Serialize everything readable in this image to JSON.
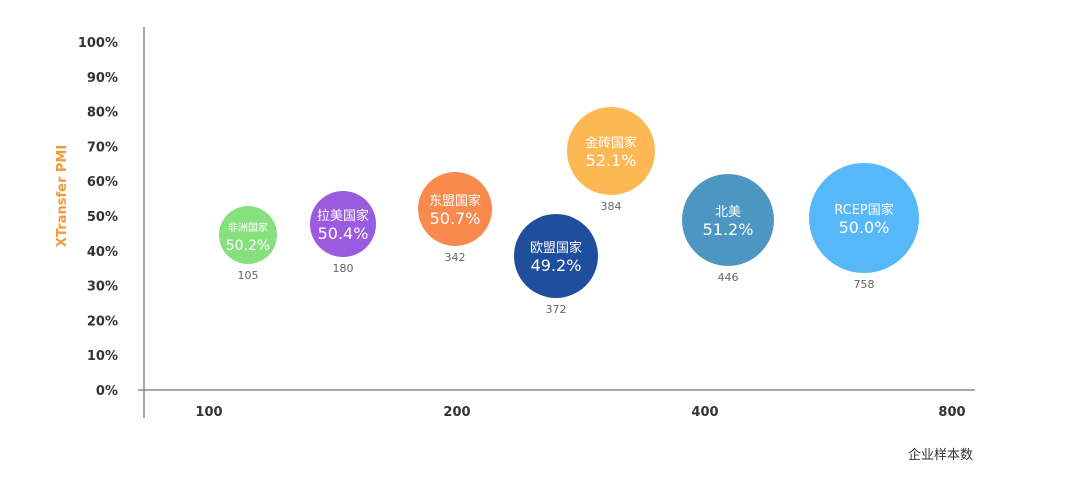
{
  "chart_data": {
    "type": "scatter",
    "title": "",
    "xlabel": "企业样本数",
    "ylabel": "XTransfer PMI",
    "y_ticks": [
      "0%",
      "10%",
      "20%",
      "30%",
      "40%",
      "50%",
      "60%",
      "70%",
      "80%",
      "90%",
      "100%"
    ],
    "ylim": [
      0,
      100
    ],
    "x_ticks": [
      "100",
      "200",
      "400",
      "800"
    ],
    "x_scale": "log",
    "series": [
      {
        "name": "非洲国家",
        "pmi_label": "50.2%",
        "pmi": 50.2,
        "y": 45,
        "sample": 105,
        "sample_label": "105",
        "color": "#86E07E"
      },
      {
        "name": "拉美国家",
        "pmi_label": "50.4%",
        "pmi": 50.4,
        "y": 48,
        "sample": 180,
        "sample_label": "180",
        "color": "#9B5BE0"
      },
      {
        "name": "东盟国家",
        "pmi_label": "50.7%",
        "pmi": 50.7,
        "y": 52,
        "sample": 342,
        "sample_label": "342",
        "color": "#F98A4E"
      },
      {
        "name": "欧盟国家",
        "pmi_label": "49.2%",
        "pmi": 49.2,
        "y": 39,
        "sample": 372,
        "sample_label": "372",
        "color": "#1F4E9C"
      },
      {
        "name": "金砖国家",
        "pmi_label": "52.1%",
        "pmi": 52.1,
        "y": 69,
        "sample": 384,
        "sample_label": "384",
        "color": "#FDB853"
      },
      {
        "name": "北美",
        "pmi_label": "51.2%",
        "pmi": 51.2,
        "y": 50,
        "sample": 446,
        "sample_label": "446",
        "color": "#4E96C2"
      },
      {
        "name": "RCEP国家",
        "pmi_label": "50.0%",
        "pmi": 50.0,
        "y": 50,
        "sample": 758,
        "sample_label": "758",
        "color": "#56B8F8"
      }
    ]
  }
}
